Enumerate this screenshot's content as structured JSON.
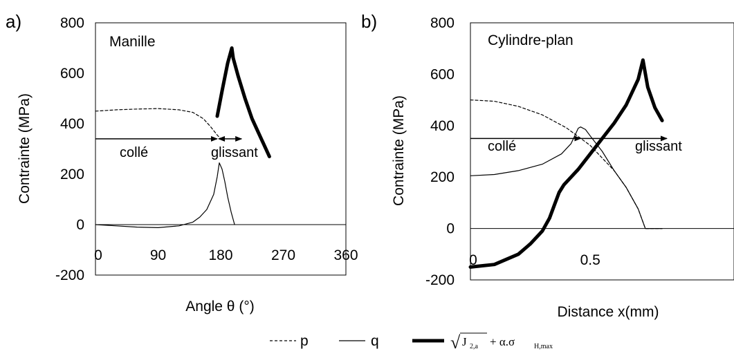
{
  "colors": {
    "axis": "#000000",
    "plot_bg": "#ffffff",
    "line": "#000000"
  },
  "legend": {
    "p_label": "p",
    "q_label": "q",
    "crit_sqrt_symbol": "√",
    "crit_J": "J",
    "crit_J_sub": "2,a",
    "crit_rest": "+ α.σ",
    "crit_rest_sub": "H,max"
  },
  "chart_data": [
    {
      "type": "line",
      "panel_label": "a)",
      "title": "Manille",
      "xlabel": "Angle θ (°)",
      "ylabel": "Contrainte (MPa)",
      "xlim": [
        0,
        360
      ],
      "ylim": [
        -200,
        800
      ],
      "x_ticks": [
        "0",
        "90",
        "180",
        "270",
        "360"
      ],
      "y_ticks": [
        "-200",
        "0",
        "200",
        "400",
        "600",
        "800"
      ],
      "grid": false,
      "annotations": {
        "stuck": "collé",
        "slip": "glissant",
        "arrow_y": 340,
        "stick_end_x": 175,
        "slip_end_x": 210
      },
      "series": [
        {
          "name": "p",
          "style": "dashed",
          "x": [
            0,
            30,
            60,
            90,
            120,
            140,
            155,
            165,
            175,
            180
          ],
          "y": [
            450,
            455,
            458,
            460,
            455,
            445,
            420,
            390,
            355,
            340
          ]
        },
        {
          "name": "q",
          "style": "solid",
          "x": [
            0,
            30,
            60,
            90,
            120,
            140,
            150,
            160,
            170,
            175,
            178,
            182,
            186,
            190,
            195,
            200
          ],
          "y": [
            0,
            -5,
            -10,
            -12,
            -5,
            10,
            30,
            60,
            120,
            190,
            245,
            220,
            170,
            110,
            50,
            0
          ]
        },
        {
          "name": "√J2,a + α.σH,max",
          "style": "thick",
          "x": [
            175,
            182,
            190,
            196,
            198,
            205,
            215,
            225,
            235,
            245,
            250
          ],
          "y": [
            430,
            530,
            640,
            700,
            660,
            590,
            500,
            420,
            360,
            300,
            270
          ]
        }
      ]
    },
    {
      "type": "line",
      "panel_label": "b)",
      "title": "Cylindre-plan",
      "xlabel": "Distance x(mm)",
      "ylabel": "Contrainte (MPa)",
      "xlim": [
        0,
        1.1
      ],
      "ylim": [
        -200,
        800
      ],
      "x_ticks": [
        "0",
        "0.5"
      ],
      "y_ticks": [
        "-200",
        "0",
        "200",
        "400",
        "600",
        "800"
      ],
      "grid": false,
      "annotations": {
        "stuck": "collé",
        "slip": "glissant",
        "arrow_y": 350,
        "stick_end_x": 0.46,
        "slip_end_x": 0.82
      },
      "series": [
        {
          "name": "p",
          "style": "dashed",
          "x": [
            0,
            0.1,
            0.2,
            0.3,
            0.4,
            0.5,
            0.6,
            0.65,
            0.7,
            0.73,
            0.75,
            0.8
          ],
          "y": [
            500,
            495,
            475,
            442,
            392,
            323,
            225,
            160,
            76,
            0,
            0,
            0
          ]
        },
        {
          "name": "q",
          "style": "solid",
          "x": [
            0,
            0.1,
            0.2,
            0.3,
            0.38,
            0.42,
            0.44,
            0.45,
            0.46,
            0.48,
            0.5,
            0.55,
            0.6,
            0.65,
            0.7,
            0.73,
            0.75,
            0.8
          ],
          "y": [
            205,
            210,
            225,
            250,
            290,
            330,
            370,
            390,
            395,
            385,
            360,
            300,
            225,
            160,
            76,
            0,
            0,
            0
          ]
        },
        {
          "name": "√J2,a + α.σH,max",
          "style": "thick",
          "x": [
            0,
            0.1,
            0.2,
            0.25,
            0.3,
            0.33,
            0.35,
            0.37,
            0.39,
            0.42,
            0.45,
            0.5,
            0.55,
            0.6,
            0.65,
            0.7,
            0.72,
            0.74,
            0.77,
            0.8
          ],
          "y": [
            -150,
            -140,
            -100,
            -60,
            -10,
            40,
            90,
            140,
            170,
            200,
            230,
            290,
            350,
            410,
            480,
            580,
            655,
            550,
            470,
            420
          ]
        }
      ]
    }
  ]
}
